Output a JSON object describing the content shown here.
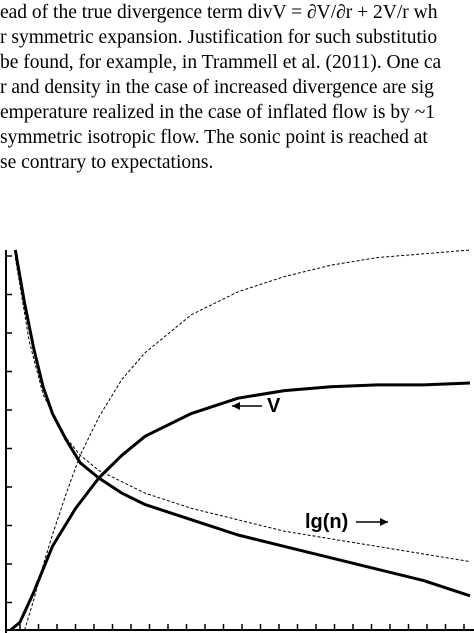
{
  "text_lines": [
    "ead of the true divergence term  divV = ∂V/∂r + 2V/r wh",
    "r symmetric expansion. Justification for such substitutio",
    "be found, for example, in Trammell et al. (2011). One ca",
    "r and density in the case of increased divergence are sig",
    "emperature realized in the case of inflated flow is by ~1",
    "symmetric isotropic flow. The sonic point is reached at",
    "se contrary to expectations."
  ],
  "chart_data": {
    "type": "line",
    "annotations": [
      "V",
      "lg(n)"
    ],
    "xlim": [
      0,
      1
    ],
    "ylim": [
      0,
      1
    ],
    "series": [
      {
        "style": "solid",
        "x": [
          0.01,
          0.03,
          0.06,
          0.1,
          0.15,
          0.2,
          0.25,
          0.3,
          0.4,
          0.5,
          0.6,
          0.7,
          0.8,
          0.9,
          1.0
        ],
        "y": [
          0.0,
          0.02,
          0.1,
          0.22,
          0.32,
          0.4,
          0.46,
          0.51,
          0.57,
          0.61,
          0.63,
          0.64,
          0.645,
          0.645,
          0.65
        ]
      },
      {
        "style": "solid",
        "x": [
          0.02,
          0.04,
          0.06,
          0.08,
          0.1,
          0.13,
          0.16,
          0.2,
          0.25,
          0.3,
          0.4,
          0.5,
          0.6,
          0.7,
          0.8,
          0.9,
          1.0
        ],
        "y": [
          1.0,
          0.86,
          0.74,
          0.64,
          0.57,
          0.5,
          0.44,
          0.4,
          0.36,
          0.33,
          0.29,
          0.25,
          0.22,
          0.19,
          0.16,
          0.13,
          0.09
        ]
      },
      {
        "style": "dashed",
        "x": [
          0.04,
          0.06,
          0.08,
          0.1,
          0.13,
          0.16,
          0.2,
          0.25,
          0.3,
          0.4,
          0.5,
          0.6,
          0.7,
          0.8,
          0.9,
          1.0
        ],
        "y": [
          0.0,
          0.08,
          0.17,
          0.25,
          0.36,
          0.46,
          0.56,
          0.66,
          0.73,
          0.83,
          0.89,
          0.93,
          0.96,
          0.98,
          0.99,
          1.0
        ]
      },
      {
        "style": "dashed",
        "x": [
          0.02,
          0.05,
          0.08,
          0.12,
          0.16,
          0.2,
          0.25,
          0.3,
          0.4,
          0.5,
          0.6,
          0.7,
          0.8,
          0.9,
          1.0
        ],
        "y": [
          0.98,
          0.76,
          0.62,
          0.52,
          0.46,
          0.42,
          0.39,
          0.36,
          0.32,
          0.29,
          0.26,
          0.24,
          0.22,
          0.2,
          0.18
        ]
      }
    ]
  }
}
